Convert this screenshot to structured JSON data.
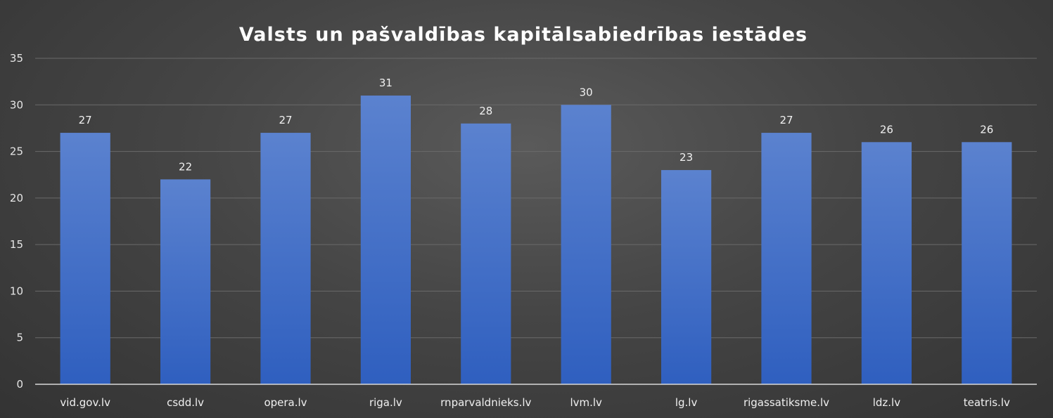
{
  "chart_data": {
    "type": "bar",
    "title": "Valsts un pašvaldības kapitālsabiedrības iestādes",
    "xlabel": "",
    "ylabel": "",
    "categories": [
      "vid.gov.lv",
      "csdd.lv",
      "opera.lv",
      "riga.lv",
      "rnparvaldnieks.lv",
      "lvm.lv",
      "lg.lv",
      "rigassatiksme.lv",
      "ldz.lv",
      "teatris.lv"
    ],
    "values": [
      27,
      22,
      27,
      31,
      28,
      30,
      23,
      27,
      26,
      26
    ],
    "ylim": [
      0,
      35
    ],
    "yticks": [
      0,
      5,
      10,
      15,
      20,
      25,
      30,
      35
    ],
    "grid": true,
    "data_labels": true,
    "legend": "none",
    "colors": {
      "bar_top": "#5b82cf",
      "bar_bottom": "#2f5fbf",
      "background": "#404040"
    }
  }
}
